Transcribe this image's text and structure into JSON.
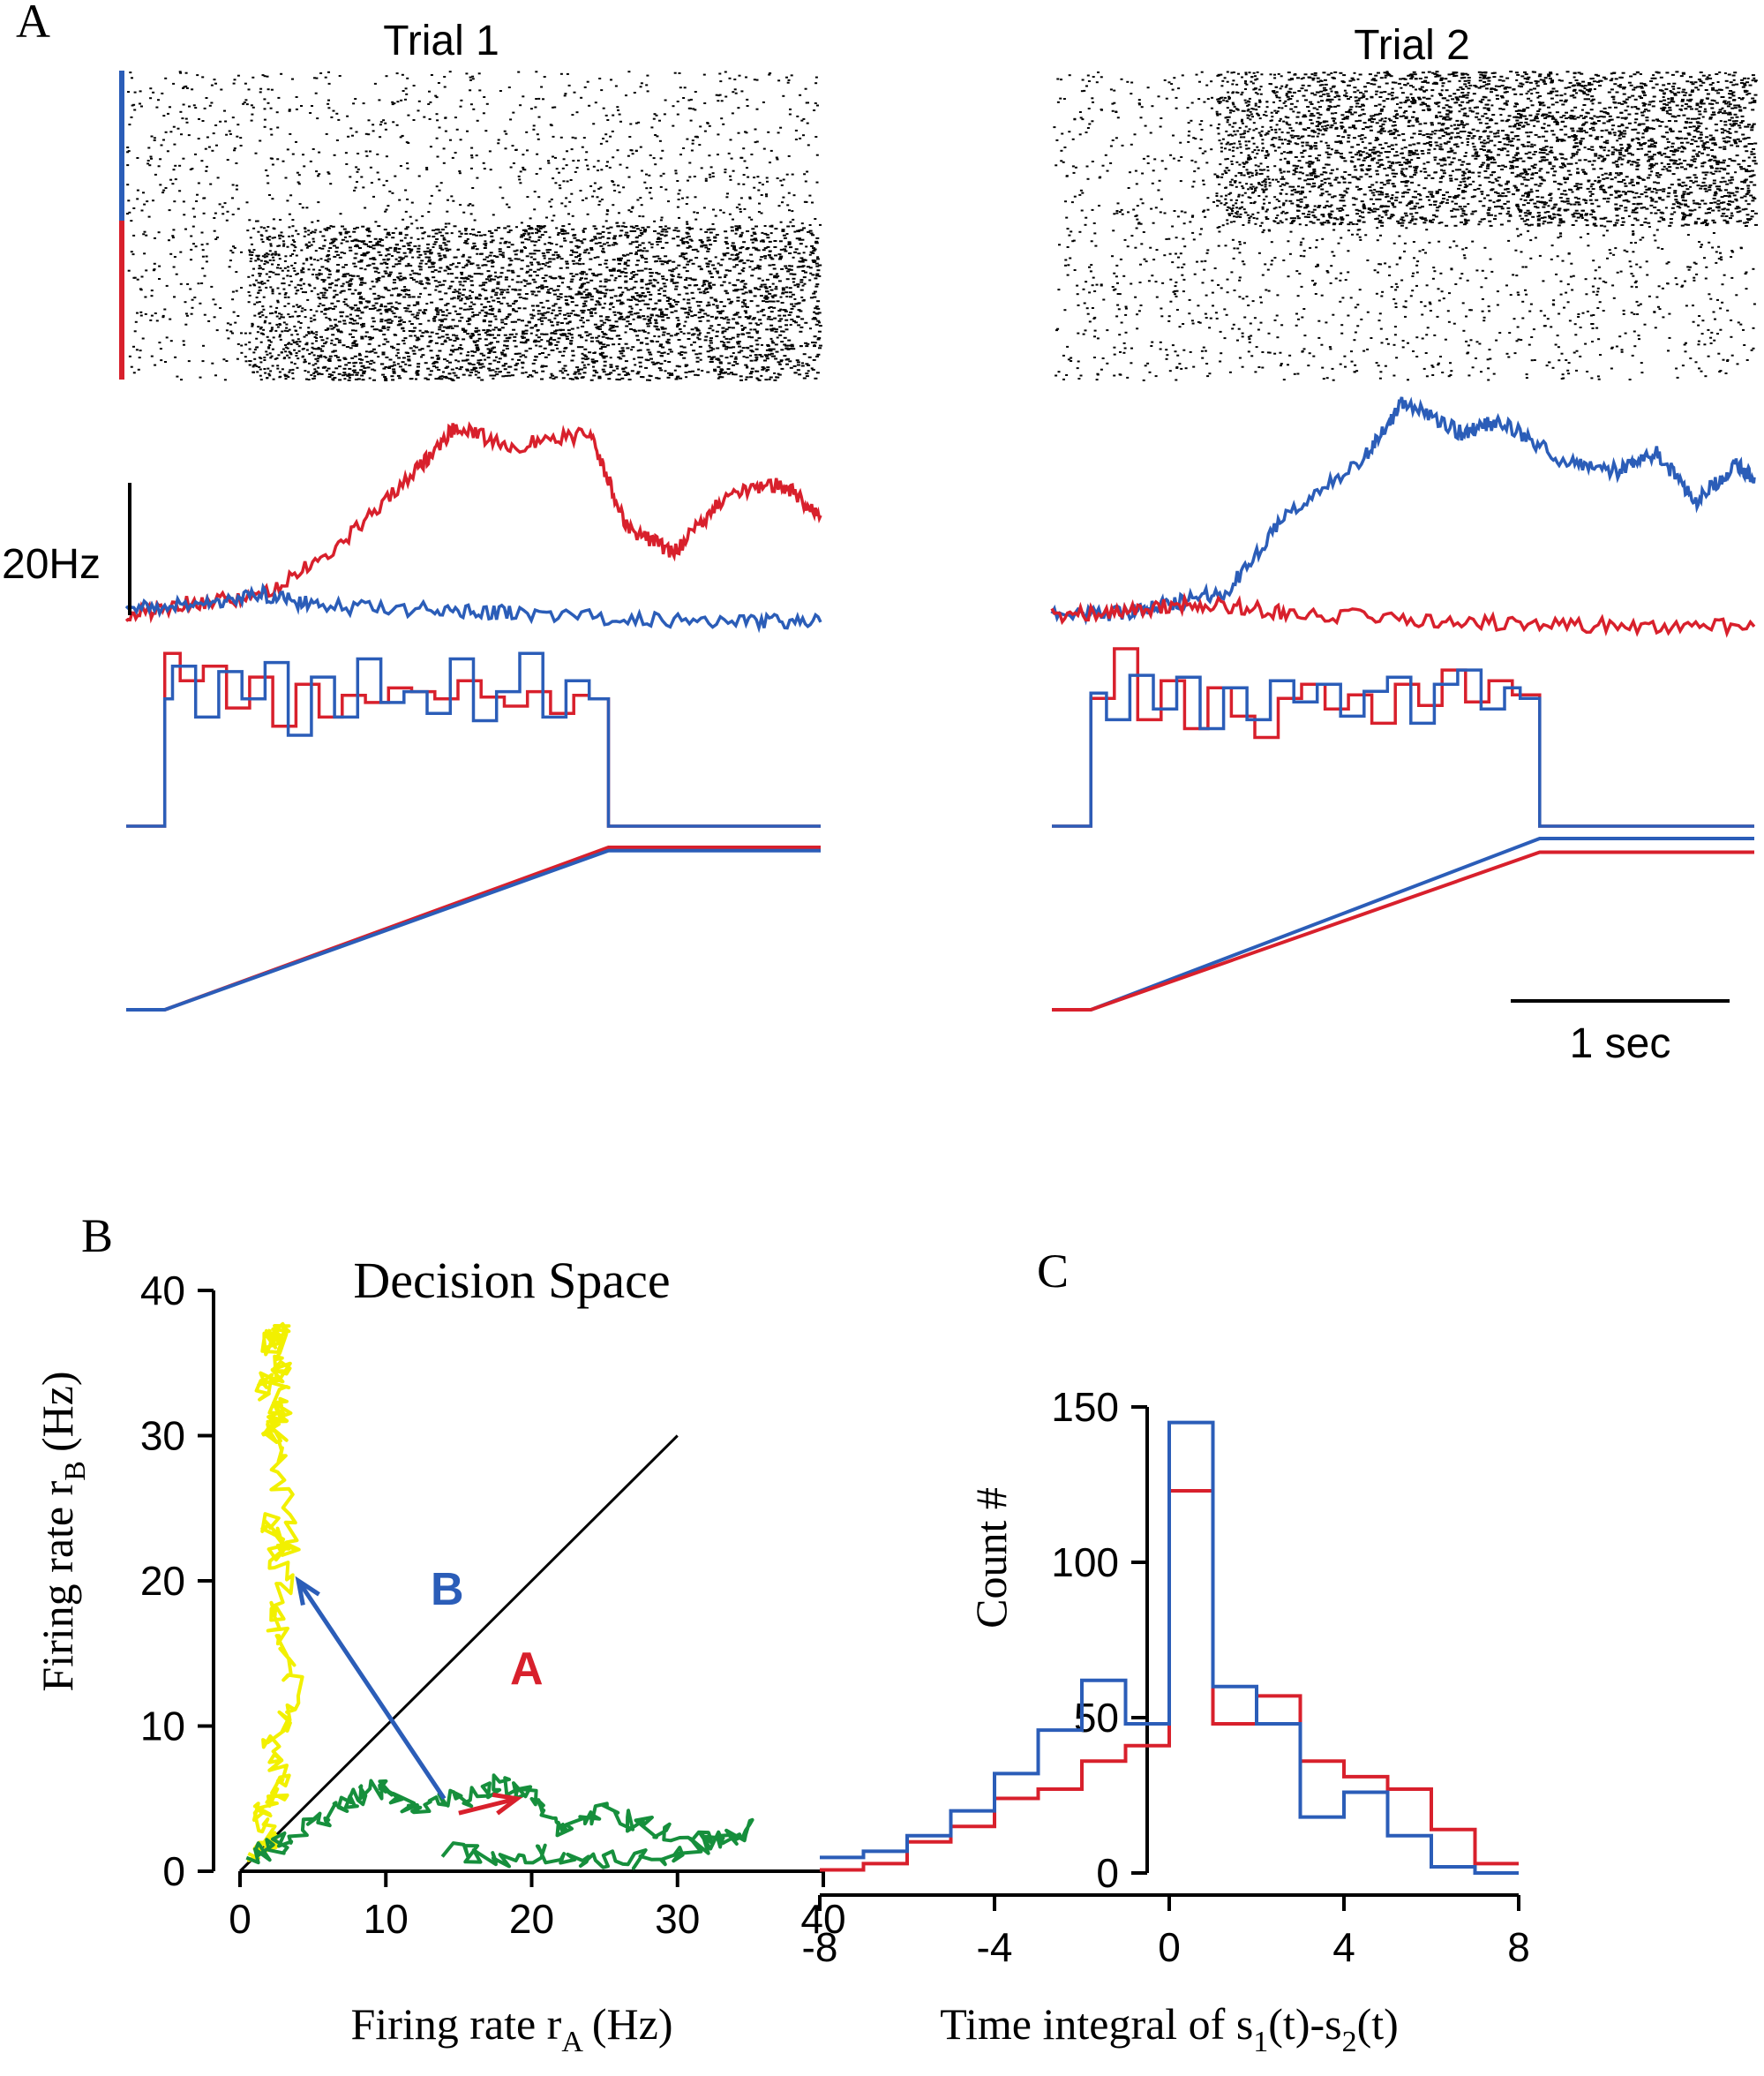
{
  "panel_labels": {
    "a": "A",
    "b": "B",
    "c": "C"
  },
  "colors": {
    "red": "#d8202c",
    "blue": "#2b5db8",
    "yellow": "#f2f000",
    "green": "#168f3c",
    "black": "#000000"
  },
  "chart_data": [
    {
      "type": "raster",
      "panel": "A",
      "title": "Trial 1",
      "groups": [
        {
          "color": "blue",
          "burst_start_s": null
        },
        {
          "color": "red",
          "burst_start_s": 0.5
        }
      ]
    },
    {
      "type": "raster",
      "panel": "A",
      "title": "Trial 2",
      "groups": [
        {
          "color": "blue",
          "burst_start_s": 0.6
        },
        {
          "color": "red",
          "burst_start_s": null
        }
      ]
    },
    {
      "type": "line",
      "panel": "A",
      "title": "Trial 1",
      "xlim": [
        0,
        1.8
      ],
      "scale_bar": {
        "label": "20Hz",
        "value": 20
      },
      "series": [
        {
          "color": "red",
          "x": [
            0,
            0.15,
            0.35,
            0.55,
            0.75,
            0.85,
            1.0,
            1.2,
            1.3,
            1.42,
            1.55,
            1.7,
            1.8
          ],
          "y": [
            2,
            4,
            5,
            13,
            25,
            32,
            29,
            31,
            16,
            12,
            21,
            23,
            18
          ]
        },
        {
          "color": "blue",
          "x": [
            0,
            0.2,
            0.35,
            0.5,
            0.8,
            1.0,
            1.3,
            1.6,
            1.8
          ],
          "y": [
            3,
            4,
            5.5,
            3.5,
            3,
            2.5,
            1.5,
            1.2,
            1
          ]
        }
      ]
    },
    {
      "type": "line",
      "panel": "A",
      "title": "Trial 2",
      "xlim": [
        0,
        1.8
      ],
      "series": [
        {
          "color": "blue",
          "x": [
            0,
            0.2,
            0.3,
            0.45,
            0.6,
            0.8,
            0.9,
            1.05,
            1.15,
            1.3,
            1.45,
            1.55,
            1.65,
            1.75,
            1.8
          ],
          "y": [
            2,
            2.5,
            4,
            6,
            18,
            27,
            36,
            31,
            33,
            27,
            25,
            28,
            20,
            26,
            24
          ]
        },
        {
          "color": "red",
          "x": [
            0,
            0.2,
            0.4,
            0.6,
            0.9,
            1.2,
            1.5,
            1.8
          ],
          "y": [
            2,
            3,
            4,
            2.5,
            1.5,
            0.8,
            0.4,
            0.3
          ]
        }
      ]
    },
    {
      "type": "step",
      "panel": "A",
      "title": "Trial 1",
      "xlim": [
        0,
        1.8
      ],
      "stimulus_on_s": [
        0.1,
        1.25
      ],
      "series": [
        {
          "color": "red",
          "x": [
            0,
            0.1,
            0.14,
            0.2,
            0.26,
            0.32,
            0.38,
            0.44,
            0.5,
            0.56,
            0.62,
            0.68,
            0.74,
            0.8,
            0.86,
            0.92,
            0.98,
            1.04,
            1.1,
            1.16,
            1.2,
            1.25,
            1.8
          ],
          "y": [
            0,
            0.95,
            0.8,
            0.88,
            0.65,
            0.82,
            0.55,
            0.78,
            0.6,
            0.72,
            0.68,
            0.76,
            0.74,
            0.7,
            0.8,
            0.71,
            0.66,
            0.74,
            0.62,
            0.72,
            0.7,
            0,
            0
          ]
        },
        {
          "color": "blue",
          "x": [
            0,
            0.1,
            0.12,
            0.18,
            0.24,
            0.3,
            0.36,
            0.42,
            0.48,
            0.54,
            0.6,
            0.66,
            0.72,
            0.78,
            0.84,
            0.9,
            0.96,
            1.02,
            1.08,
            1.14,
            1.2,
            1.25,
            1.8
          ],
          "y": [
            0,
            0.7,
            0.88,
            0.6,
            0.85,
            0.7,
            0.9,
            0.5,
            0.82,
            0.6,
            0.92,
            0.68,
            0.74,
            0.62,
            0.92,
            0.58,
            0.74,
            0.95,
            0.6,
            0.8,
            0.7,
            0,
            0
          ]
        }
      ]
    },
    {
      "type": "step",
      "panel": "A",
      "title": "Trial 2",
      "xlim": [
        0,
        1.8
      ],
      "stimulus_on_s": [
        0.1,
        1.25
      ],
      "series": [
        {
          "color": "red",
          "x": [
            0,
            0.1,
            0.16,
            0.22,
            0.28,
            0.34,
            0.4,
            0.46,
            0.52,
            0.58,
            0.64,
            0.7,
            0.76,
            0.82,
            0.88,
            0.94,
            1.0,
            1.06,
            1.12,
            1.18,
            1.25,
            1.8
          ],
          "y": [
            0,
            0.72,
            1.0,
            0.6,
            0.82,
            0.55,
            0.78,
            0.62,
            0.5,
            0.72,
            0.8,
            0.66,
            0.74,
            0.58,
            0.8,
            0.68,
            0.88,
            0.7,
            0.82,
            0.74,
            0,
            0
          ]
        },
        {
          "color": "blue",
          "x": [
            0,
            0.1,
            0.14,
            0.2,
            0.26,
            0.32,
            0.38,
            0.44,
            0.5,
            0.56,
            0.62,
            0.68,
            0.74,
            0.8,
            0.86,
            0.92,
            0.98,
            1.04,
            1.1,
            1.16,
            1.2,
            1.25,
            1.8
          ],
          "y": [
            0,
            0.75,
            0.6,
            0.85,
            0.66,
            0.84,
            0.55,
            0.78,
            0.6,
            0.82,
            0.7,
            0.8,
            0.62,
            0.76,
            0.84,
            0.58,
            0.8,
            0.88,
            0.66,
            0.78,
            0.72,
            0,
            0
          ]
        }
      ]
    },
    {
      "type": "line",
      "panel": "A",
      "title": "Trial 1",
      "xlim": [
        0,
        1.8
      ],
      "series": [
        {
          "color": "red",
          "x": [
            0,
            0.1,
            1.25,
            1.8
          ],
          "y": [
            0,
            0,
            1.0,
            1.0
          ]
        },
        {
          "color": "blue",
          "x": [
            0,
            0.1,
            1.25,
            1.8
          ],
          "y": [
            0,
            0,
            0.98,
            0.98
          ]
        }
      ]
    },
    {
      "type": "line",
      "panel": "A",
      "title": "Trial 2",
      "xlim": [
        0,
        1.8
      ],
      "scale_bar": {
        "label": "1 sec",
        "value": 1
      },
      "series": [
        {
          "color": "blue",
          "x": [
            0,
            0.1,
            1.25,
            1.8
          ],
          "y": [
            0,
            0,
            1.0,
            1.0
          ]
        },
        {
          "color": "red",
          "x": [
            0,
            0.1,
            1.25,
            1.8
          ],
          "y": [
            0,
            0,
            0.92,
            0.92
          ]
        }
      ]
    },
    {
      "type": "scatter",
      "panel": "B",
      "title": "Decision Space",
      "xlabel": "Firing rate r",
      "xlabel_sub": "A",
      "xlabel_unit": "(Hz)",
      "ylabel": "Firing rate r",
      "ylabel_sub": "B",
      "ylabel_unit": "(Hz)",
      "xlim": [
        0,
        40
      ],
      "ylim": [
        0,
        40
      ],
      "xticks": [
        "0",
        "10",
        "20",
        "30",
        "40"
      ],
      "yticks": [
        "0",
        "10",
        "20",
        "30",
        "40"
      ],
      "diagonal": [
        [
          0,
          0
        ],
        [
          30,
          30
        ]
      ],
      "annotations": [
        {
          "text": "B",
          "color": "blue",
          "arrow_from": [
            14,
            5
          ],
          "arrow_to": [
            4,
            20
          ]
        },
        {
          "text": "A",
          "color": "red",
          "arrow_from": [
            15,
            4
          ],
          "arrow_to": [
            19,
            5
          ]
        }
      ],
      "series": [
        {
          "color": "yellow",
          "x": [
            1,
            2,
            1.5,
            3,
            2,
            4,
            2.5,
            3,
            2,
            3.5,
            2.5,
            3,
            2,
            3,
            1.5,
            3,
            2,
            2.5
          ],
          "y": [
            1,
            2,
            4,
            6,
            9,
            12,
            17,
            20,
            24,
            22,
            28,
            32,
            30,
            35,
            33,
            38,
            36,
            37
          ]
        },
        {
          "color": "green",
          "x": [
            1,
            3,
            6,
            8,
            10,
            12,
            15,
            18,
            20,
            22,
            25,
            28,
            32,
            35,
            30,
            26,
            22,
            18,
            14
          ],
          "y": [
            1,
            2,
            4,
            5,
            6,
            4,
            5,
            6,
            5,
            3,
            4,
            3,
            2,
            3,
            1,
            0.8,
            1.2,
            1,
            1.5
          ]
        }
      ]
    },
    {
      "type": "step",
      "panel": "C",
      "xlabel": "Time integral of s",
      "xlabel_sub1": "1",
      "xlabel_mid": "(t)-s",
      "xlabel_sub2": "2",
      "xlabel_end": "(t)",
      "ylabel": "Count #",
      "xlim": [
        -8,
        8
      ],
      "ylim": [
        0,
        150
      ],
      "xticks": [
        "-8",
        "-4",
        "0",
        "4",
        "8"
      ],
      "yticks": [
        "0",
        "50",
        "100",
        "150"
      ],
      "bin_edges": [
        -8,
        -7,
        -6,
        -5,
        -4,
        -3,
        -2,
        -1,
        0,
        1,
        2,
        3,
        4,
        5,
        6,
        7,
        8
      ],
      "series": [
        {
          "color": "red",
          "counts": [
            1,
            3,
            10,
            15,
            24,
            27,
            36,
            41,
            123,
            48,
            57,
            36,
            31,
            27,
            14,
            3
          ]
        },
        {
          "color": "blue",
          "counts": [
            5,
            7,
            12,
            20,
            32,
            46,
            62,
            48,
            145,
            60,
            48,
            18,
            26,
            12,
            2,
            0
          ]
        }
      ]
    }
  ]
}
